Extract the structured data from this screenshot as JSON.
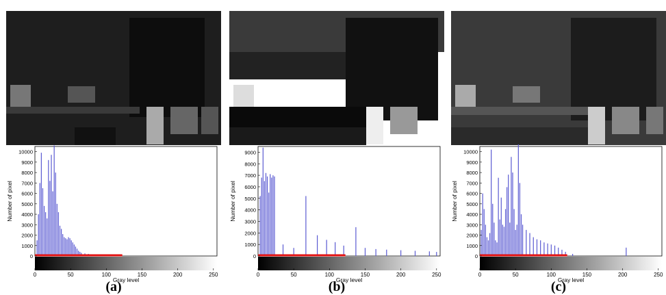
{
  "figure_labels": [
    "(a)",
    "(b)",
    "(c)"
  ],
  "colors": {
    "bars": "#5a5ad2",
    "baseline": "#e01010",
    "background": "#ffffff"
  },
  "chart_data": [
    {
      "type": "bar",
      "panel": "(a)",
      "xlabel": "Gray level",
      "ylabel": "Number of pixel",
      "xlim": [
        0,
        255
      ],
      "ylim": [
        0,
        10500
      ],
      "xticks": [
        "0",
        "50",
        "100",
        "150",
        "200",
        "250"
      ],
      "yticks": [
        "0",
        "1000",
        "2000",
        "3000",
        "4000",
        "5000",
        "6000",
        "7000",
        "8000",
        "9000",
        "10000"
      ],
      "x": [
        3,
        5,
        7,
        9,
        11,
        13,
        15,
        17,
        19,
        21,
        23,
        25,
        27,
        29,
        31,
        33,
        35,
        37,
        39,
        41,
        43,
        45,
        47,
        49,
        51,
        53,
        55,
        57,
        59,
        61,
        63,
        65,
        70,
        75,
        80,
        85,
        90,
        95,
        100,
        110,
        120
      ],
      "y": [
        1500,
        4000,
        7000,
        9900,
        6500,
        4800,
        4200,
        3600,
        9200,
        7200,
        9700,
        6200,
        10600,
        8000,
        5000,
        4200,
        2900,
        2600,
        2100,
        1800,
        1700,
        1600,
        1800,
        1700,
        1500,
        1300,
        1100,
        900,
        700,
        500,
        400,
        300,
        250,
        200,
        150,
        120,
        100,
        80,
        60,
        40,
        20
      ]
    },
    {
      "type": "bar",
      "panel": "(b)",
      "xlabel": "Gray level",
      "ylabel": "Number of pixel",
      "xlim": [
        0,
        255
      ],
      "ylim": [
        0,
        9500
      ],
      "xticks": [
        "0",
        "50",
        "100",
        "150",
        "200",
        "250"
      ],
      "yticks": [
        "0",
        "1000",
        "2000",
        "3000",
        "4000",
        "5000",
        "6000",
        "7000",
        "8000",
        "9000"
      ],
      "x": [
        3,
        5,
        7,
        9,
        11,
        13,
        15,
        17,
        19,
        21,
        23,
        35,
        50,
        67,
        83,
        96,
        108,
        120,
        137,
        150,
        165,
        180,
        200,
        220,
        240,
        250
      ],
      "y": [
        5200,
        6800,
        9400,
        6500,
        7200,
        6900,
        5500,
        7100,
        6800,
        7000,
        6900,
        1000,
        700,
        5200,
        1800,
        1400,
        1200,
        900,
        2500,
        700,
        600,
        550,
        500,
        450,
        400,
        350
      ]
    },
    {
      "type": "bar",
      "panel": "(c)",
      "xlabel": "Gray level",
      "ylabel": "Number of pixel",
      "xlim": [
        0,
        255
      ],
      "ylim": [
        0,
        10500
      ],
      "xticks": [
        "0",
        "50",
        "100",
        "150",
        "200",
        "250"
      ],
      "yticks": [
        "0",
        "1000",
        "2000",
        "3000",
        "4000",
        "5000",
        "6000",
        "7000",
        "8000",
        "9000",
        "10000"
      ],
      "x": [
        2,
        4,
        6,
        8,
        10,
        12,
        14,
        16,
        18,
        20,
        22,
        24,
        26,
        28,
        30,
        32,
        34,
        36,
        38,
        40,
        42,
        44,
        46,
        48,
        50,
        52,
        54,
        56,
        58,
        60,
        65,
        70,
        75,
        80,
        85,
        90,
        95,
        100,
        105,
        110,
        115,
        120,
        130,
        205
      ],
      "y": [
        2500,
        6000,
        4500,
        3000,
        1800,
        1500,
        2200,
        10200,
        5000,
        3200,
        1500,
        1300,
        7500,
        3500,
        5600,
        3000,
        2800,
        4500,
        6600,
        7800,
        3200,
        9500,
        8000,
        4500,
        2500,
        3000,
        10700,
        7000,
        4000,
        3000,
        2500,
        2200,
        1800,
        1600,
        1500,
        1300,
        1200,
        1100,
        1000,
        800,
        600,
        400,
        200,
        800
      ]
    }
  ]
}
